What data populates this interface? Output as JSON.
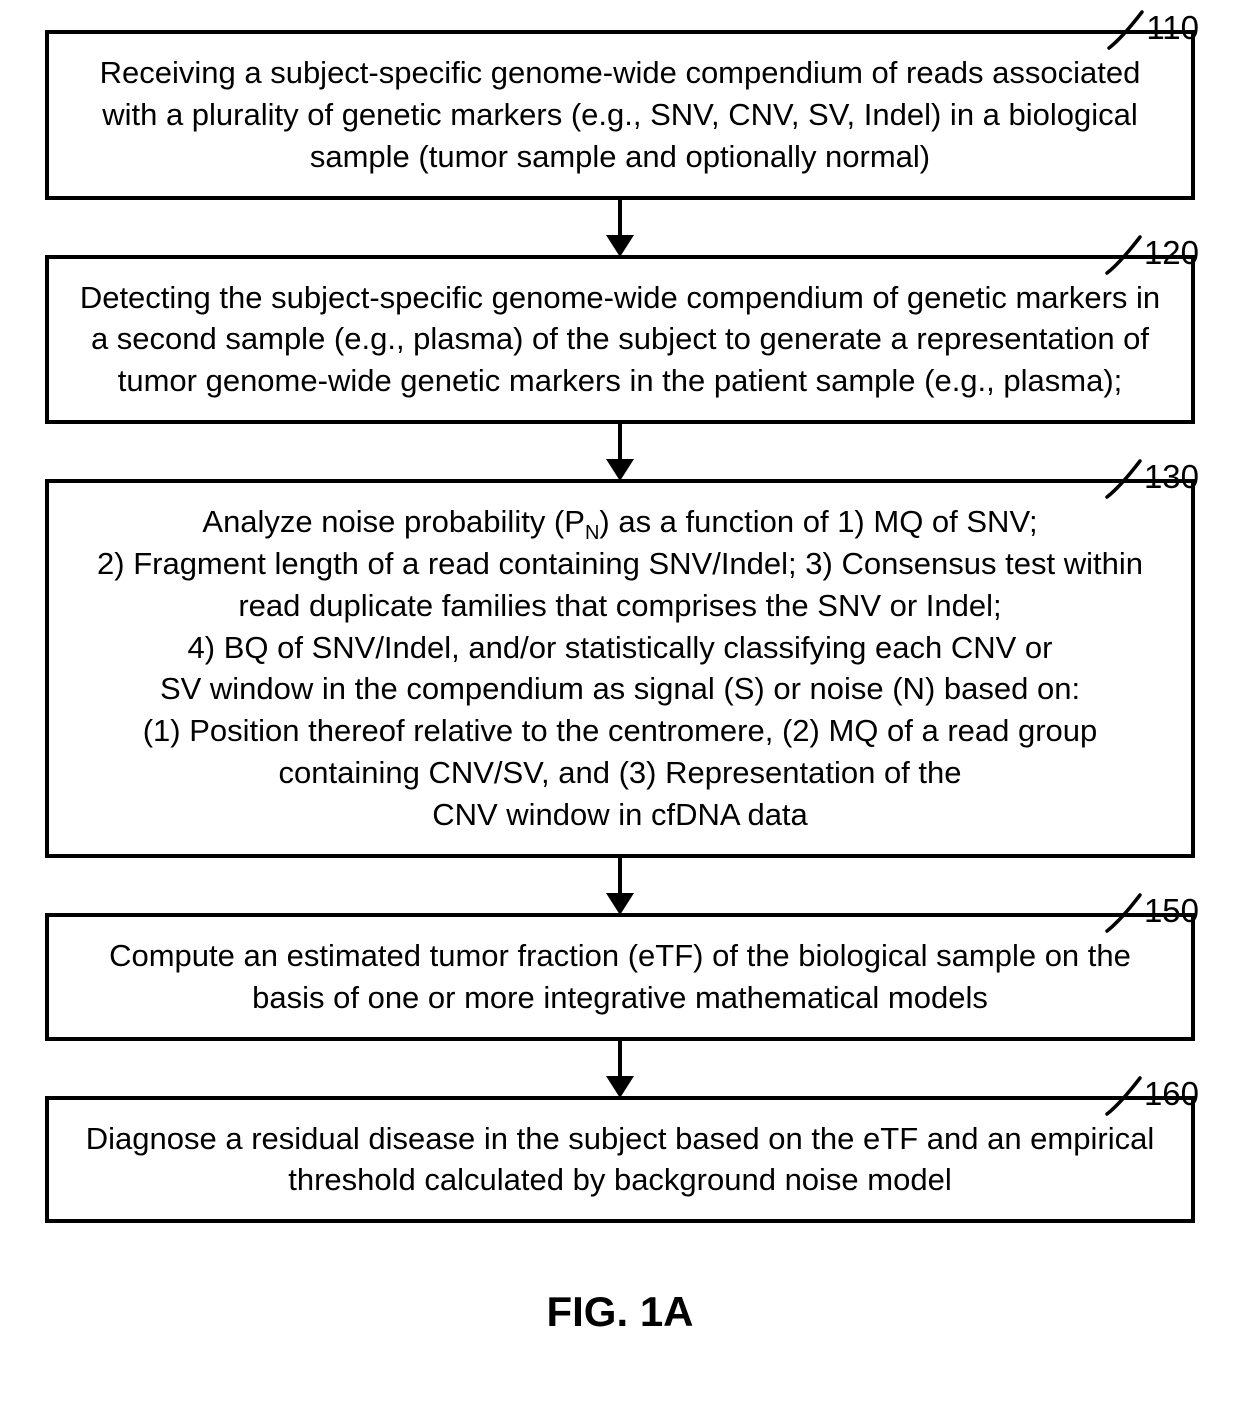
{
  "flowchart": {
    "type": "flowchart",
    "background_color": "#ffffff",
    "box_border_color": "#000000",
    "box_border_width": 4,
    "text_color": "#000000",
    "arrow_color": "#000000",
    "body_fontsize": 31,
    "figure_label": "FIG. 1A",
    "figure_label_fontsize": 42,
    "label_fontsize": 33,
    "steps": [
      {
        "id": "110",
        "text": "Receiving a subject-specific genome-wide compendium of reads associated with a plurality of genetic markers (e.g., SNV, CNV, SV, Indel) in a biological sample (tumor sample and optionally normal)"
      },
      {
        "id": "120",
        "text": "Detecting the subject-specific genome-wide compendium of genetic markers in a second sample (e.g., plasma) of the subject to generate a representation of tumor genome-wide genetic markers in the patient sample (e.g., plasma);"
      },
      {
        "id": "130",
        "text_html": "Analyze noise probability (P<span class='sub'>N</span>) as a function of 1) MQ of SNV;<br>2) Fragment length of a read containing SNV/Indel; 3) Consensus test within read duplicate families that comprises the SNV or Indel;<br>4) BQ of SNV/Indel, and/or statistically classifying each CNV or<br>SV window in the compendium as signal (S) or noise (N) based on:<br>(1) Position thereof relative to the centromere, (2) MQ of a read group containing CNV/SV, and (3) Representation of the<br>CNV window in cfDNA data"
      },
      {
        "id": "150",
        "text": "Compute an estimated tumor fraction (eTF) of the biological sample on the basis of one or more integrative mathematical models"
      },
      {
        "id": "160",
        "text": "Diagnose a residual disease in the subject based on the eTF and an empirical threshold calculated by background noise model"
      }
    ]
  }
}
